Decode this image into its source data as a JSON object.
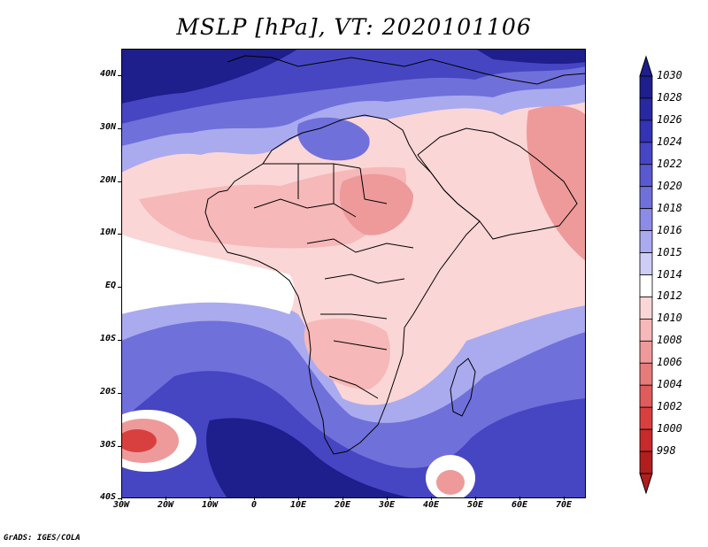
{
  "title": "MSLP [hPa], VT: 2020101106",
  "credit": "GrADS: IGES/COLA",
  "map": {
    "lat_labels": [
      "40N",
      "30N",
      "20N",
      "10N",
      "EQ",
      "10S",
      "20S",
      "30S",
      "40S"
    ],
    "lon_labels": [
      "30W",
      "20W",
      "10W",
      "0",
      "10E",
      "20E",
      "30E",
      "40E",
      "50E",
      "60E",
      "70E"
    ]
  },
  "colorbar": {
    "levels": [
      "1030",
      "1028",
      "1026",
      "1024",
      "1022",
      "1020",
      "1018",
      "1016",
      "1015",
      "1014",
      "1012",
      "1010",
      "1008",
      "1006",
      "1004",
      "1002",
      "1000",
      "998"
    ],
    "colors": [
      "#1e1e8c",
      "#2828a0",
      "#3333b4",
      "#4646c3",
      "#5a5ad0",
      "#7070db",
      "#8c8ce6",
      "#aaaaef",
      "#cdcdf7",
      "#ffffff",
      "#fbd6d6",
      "#f6b8b8",
      "#ee9a9a",
      "#e67b7b",
      "#df5c5c",
      "#d84040",
      "#c62a2a",
      "#b01e1e"
    ],
    "top_arrow_color": "#1e1e8c",
    "bottom_arrow_color": "#b01e1e"
  },
  "fields": {
    "background": "#fbd6d6",
    "very_high": "#1e1e8c",
    "high": "#4646c3",
    "mid_high": "#7070db",
    "low_high": "#aaaaef",
    "neutral": "#ffffff",
    "low": "#f6b8b8",
    "lower": "#ee9a9a",
    "lowest": "#d84040"
  }
}
